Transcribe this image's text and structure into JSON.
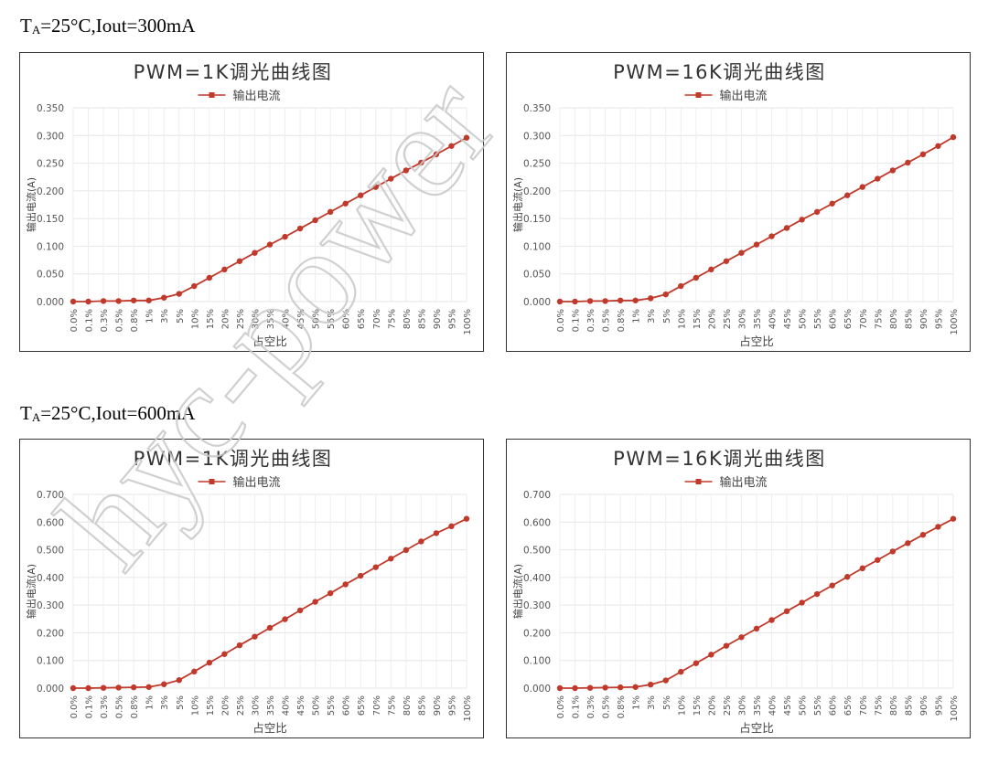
{
  "sections": [
    {
      "label_main": "T",
      "label_sub": "A",
      "label_rest": "=25°C,Iout=300mA"
    },
    {
      "label_main": "T",
      "label_sub": "A",
      "label_rest": "=25°C,Iout=600mA"
    }
  ],
  "watermark": {
    "text": "hyc-power",
    "color": "#c8c8c8"
  },
  "chart_data": [
    {
      "type": "line",
      "title": "PWM=1K调光曲线图",
      "xlabel": "占空比",
      "ylabel": "输出电流(A)",
      "legend": "top",
      "grid": true,
      "ylim": [
        0,
        0.35
      ],
      "yticks": [
        "0.000",
        "0.050",
        "0.100",
        "0.150",
        "0.200",
        "0.250",
        "0.300",
        "0.350"
      ],
      "categories": [
        "0.0%",
        "0.1%",
        "0.3%",
        "0.5%",
        "0.8%",
        "1%",
        "3%",
        "5%",
        "10%",
        "15%",
        "20%",
        "25%",
        "30%",
        "35%",
        "40%",
        "45%",
        "50%",
        "55%",
        "60%",
        "65%",
        "70%",
        "75%",
        "80%",
        "85%",
        "90%",
        "95%",
        "100%"
      ],
      "series": [
        {
          "name": "输出电流",
          "color": "#c0392b",
          "values": [
            0.0,
            0.0,
            0.001,
            0.001,
            0.002,
            0.002,
            0.007,
            0.014,
            0.028,
            0.043,
            0.058,
            0.073,
            0.088,
            0.103,
            0.117,
            0.132,
            0.147,
            0.162,
            0.177,
            0.192,
            0.207,
            0.222,
            0.237,
            0.251,
            0.266,
            0.281,
            0.296
          ]
        }
      ]
    },
    {
      "type": "line",
      "title": "PWM=16K调光曲线图",
      "xlabel": "占空比",
      "ylabel": "输出电流(A)",
      "legend": "top",
      "grid": true,
      "ylim": [
        0,
        0.35
      ],
      "yticks": [
        "0.000",
        "0.050",
        "0.100",
        "0.150",
        "0.200",
        "0.250",
        "0.300",
        "0.350"
      ],
      "categories": [
        "0.0%",
        "0.1%",
        "0.3%",
        "0.5%",
        "0.8%",
        "1%",
        "3%",
        "5%",
        "10%",
        "15%",
        "20%",
        "25%",
        "30%",
        "35%",
        "40%",
        "45%",
        "50%",
        "55%",
        "60%",
        "65%",
        "70%",
        "75%",
        "80%",
        "85%",
        "90%",
        "95%",
        "100%"
      ],
      "series": [
        {
          "name": "输出电流",
          "color": "#c0392b",
          "values": [
            0.0,
            0.0,
            0.001,
            0.001,
            0.002,
            0.002,
            0.006,
            0.013,
            0.028,
            0.043,
            0.058,
            0.073,
            0.088,
            0.103,
            0.118,
            0.133,
            0.148,
            0.162,
            0.177,
            0.192,
            0.207,
            0.222,
            0.237,
            0.251,
            0.266,
            0.281,
            0.297
          ]
        }
      ]
    },
    {
      "type": "line",
      "title": "PWM=1K调光曲线图",
      "xlabel": "占空比",
      "ylabel": "输出电流(A)",
      "legend": "top",
      "grid": true,
      "ylim": [
        0,
        0.7
      ],
      "yticks": [
        "0.000",
        "0.100",
        "0.200",
        "0.300",
        "0.400",
        "0.500",
        "0.600",
        "0.700"
      ],
      "categories": [
        "0.0%",
        "0.1%",
        "0.3%",
        "0.5%",
        "0.8%",
        "1%",
        "3%",
        "5%",
        "10%",
        "15%",
        "20%",
        "25%",
        "30%",
        "35%",
        "40%",
        "45%",
        "50%",
        "55%",
        "60%",
        "65%",
        "70%",
        "75%",
        "80%",
        "85%",
        "90%",
        "95%",
        "100%"
      ],
      "series": [
        {
          "name": "输出电流",
          "color": "#c0392b",
          "values": [
            0.0,
            0.0,
            0.001,
            0.002,
            0.003,
            0.004,
            0.014,
            0.029,
            0.06,
            0.092,
            0.123,
            0.155,
            0.186,
            0.218,
            0.249,
            0.281,
            0.312,
            0.343,
            0.375,
            0.406,
            0.437,
            0.468,
            0.499,
            0.53,
            0.56,
            0.585,
            0.612
          ]
        }
      ]
    },
    {
      "type": "line",
      "title": "PWM=16K调光曲线图",
      "xlabel": "占空比",
      "ylabel": "输出电流(A)",
      "legend": "top",
      "grid": true,
      "ylim": [
        0,
        0.7
      ],
      "yticks": [
        "0.000",
        "0.100",
        "0.200",
        "0.300",
        "0.400",
        "0.500",
        "0.600",
        "0.700"
      ],
      "categories": [
        "0.0%",
        "0.1%",
        "0.3%",
        "0.5%",
        "0.8%",
        "1%",
        "3%",
        "5%",
        "10%",
        "15%",
        "20%",
        "25%",
        "30%",
        "35%",
        "40%",
        "45%",
        "50%",
        "55%",
        "60%",
        "65%",
        "70%",
        "75%",
        "80%",
        "85%",
        "90%",
        "95%",
        "100%"
      ],
      "series": [
        {
          "name": "输出电流",
          "color": "#c0392b",
          "values": [
            0.0,
            0.0,
            0.001,
            0.002,
            0.003,
            0.004,
            0.013,
            0.028,
            0.059,
            0.09,
            0.121,
            0.153,
            0.184,
            0.215,
            0.246,
            0.278,
            0.309,
            0.34,
            0.371,
            0.402,
            0.433,
            0.463,
            0.494,
            0.524,
            0.554,
            0.583,
            0.612
          ]
        }
      ]
    }
  ]
}
